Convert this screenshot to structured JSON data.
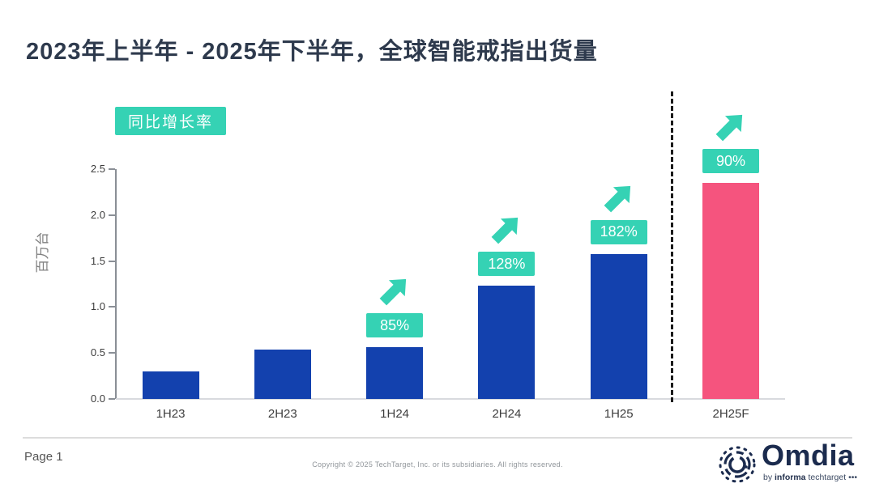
{
  "title": "2023年上半年 - 2025年下半年，全球智能戒指出货量",
  "legend": {
    "label": "同比增长率"
  },
  "chart_data": {
    "type": "bar",
    "title": "2023年上半年 - 2025年下半年，全球智能戒指出货量",
    "xlabel": "",
    "ylabel": "百万台",
    "categories": [
      "1H23",
      "2H23",
      "1H24",
      "2H24",
      "1H25",
      "2H25F"
    ],
    "values": [
      0.3,
      0.54,
      0.56,
      1.23,
      1.58,
      2.35
    ],
    "growth_labels": [
      null,
      null,
      "85%",
      "128%",
      "182%",
      "90%"
    ],
    "ylim": [
      0,
      2.5
    ],
    "yticks": [
      0.0,
      0.5,
      1.0,
      1.5,
      2.0,
      2.5
    ],
    "ytick_labels": [
      "0.0",
      "0.5",
      "1.0",
      "1.5",
      "2.0",
      "2.5"
    ],
    "forecast_category": "2H25F",
    "separator_before_index": 5,
    "grid": false,
    "legend_position": "top-left",
    "colors": {
      "bar": "#1341ae",
      "forecast_bar": "#f5547e",
      "accent": "#35d2b4",
      "title": "#2e3a4d"
    }
  },
  "footer": {
    "page": "Page 1",
    "copyright": "Copyright © 2025 TechTarget, Inc. or its subsidiaries. All rights reserved."
  },
  "logo": {
    "wordmark": "Omdia",
    "byline_by": "by ",
    "byline_brand": "informa",
    "byline_rest": " techtarget",
    "byline_dots": " •••"
  }
}
